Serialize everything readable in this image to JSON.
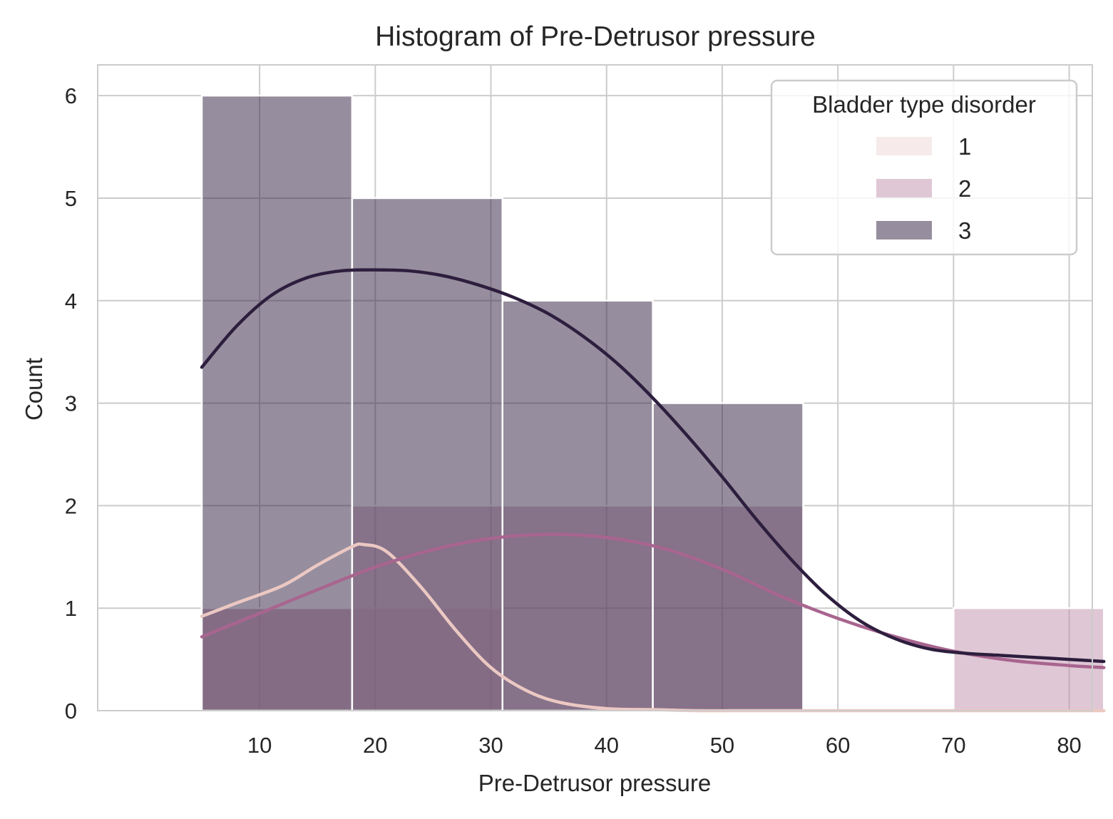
{
  "chart_data": {
    "type": "bar",
    "title": "Histogram of Pre-Detrusor pressure",
    "xlabel": "Pre-Detrusor pressure",
    "ylabel": "Count",
    "xlim": [
      -4,
      82
    ],
    "ylim": [
      0,
      6.3
    ],
    "xticks": [
      10,
      20,
      30,
      40,
      50,
      60,
      70,
      80
    ],
    "yticks": [
      0,
      1,
      2,
      3,
      4,
      5,
      6
    ],
    "grid": true,
    "legend": {
      "title": "Bladder type disorder",
      "placement": "top-right"
    },
    "bin_edges": [
      5,
      18,
      31,
      44,
      57,
      70,
      83
    ],
    "series": [
      {
        "name": "1",
        "color": "#efd6d6",
        "counts": [
          1,
          1,
          0,
          0,
          0,
          0
        ]
      },
      {
        "name": "2",
        "color": "#c08fab",
        "counts": [
          1,
          2,
          2,
          2,
          0,
          1
        ]
      },
      {
        "name": "3",
        "color": "#2d1e3e",
        "counts": [
          6,
          5,
          4,
          3,
          0,
          0
        ]
      }
    ],
    "kde": [
      {
        "name": "1",
        "color": "#ecc8c3",
        "x": [
          5,
          8,
          12,
          15,
          18,
          19,
          21,
          24,
          27,
          30,
          33,
          36,
          40,
          44,
          48,
          52,
          56,
          60,
          66,
          72,
          78,
          83
        ],
        "y": [
          0.92,
          1.05,
          1.22,
          1.42,
          1.6,
          1.62,
          1.55,
          1.2,
          0.78,
          0.42,
          0.2,
          0.08,
          0.02,
          0.01,
          0,
          0,
          0,
          0,
          0,
          0,
          0,
          0
        ]
      },
      {
        "name": "2",
        "color": "#a8658f",
        "x": [
          5,
          10,
          15,
          20,
          25,
          30,
          35,
          40,
          45,
          50,
          55,
          60,
          65,
          70,
          75,
          80,
          83
        ],
        "y": [
          0.72,
          0.95,
          1.18,
          1.4,
          1.57,
          1.68,
          1.72,
          1.69,
          1.58,
          1.38,
          1.12,
          0.9,
          0.72,
          0.58,
          0.49,
          0.44,
          0.42
        ]
      },
      {
        "name": "3",
        "color": "#2d1e3e",
        "x": [
          5,
          8,
          11,
          14,
          17,
          20,
          23,
          26,
          29,
          32,
          35,
          38,
          41,
          44,
          47,
          50,
          53,
          56,
          59,
          62,
          65,
          68,
          71,
          74,
          77,
          80,
          83
        ],
        "y": [
          3.35,
          3.75,
          4.05,
          4.22,
          4.29,
          4.3,
          4.29,
          4.24,
          4.15,
          4.03,
          3.87,
          3.65,
          3.38,
          3.05,
          2.68,
          2.28,
          1.86,
          1.47,
          1.13,
          0.87,
          0.7,
          0.6,
          0.56,
          0.54,
          0.52,
          0.5,
          0.48
        ]
      }
    ]
  }
}
